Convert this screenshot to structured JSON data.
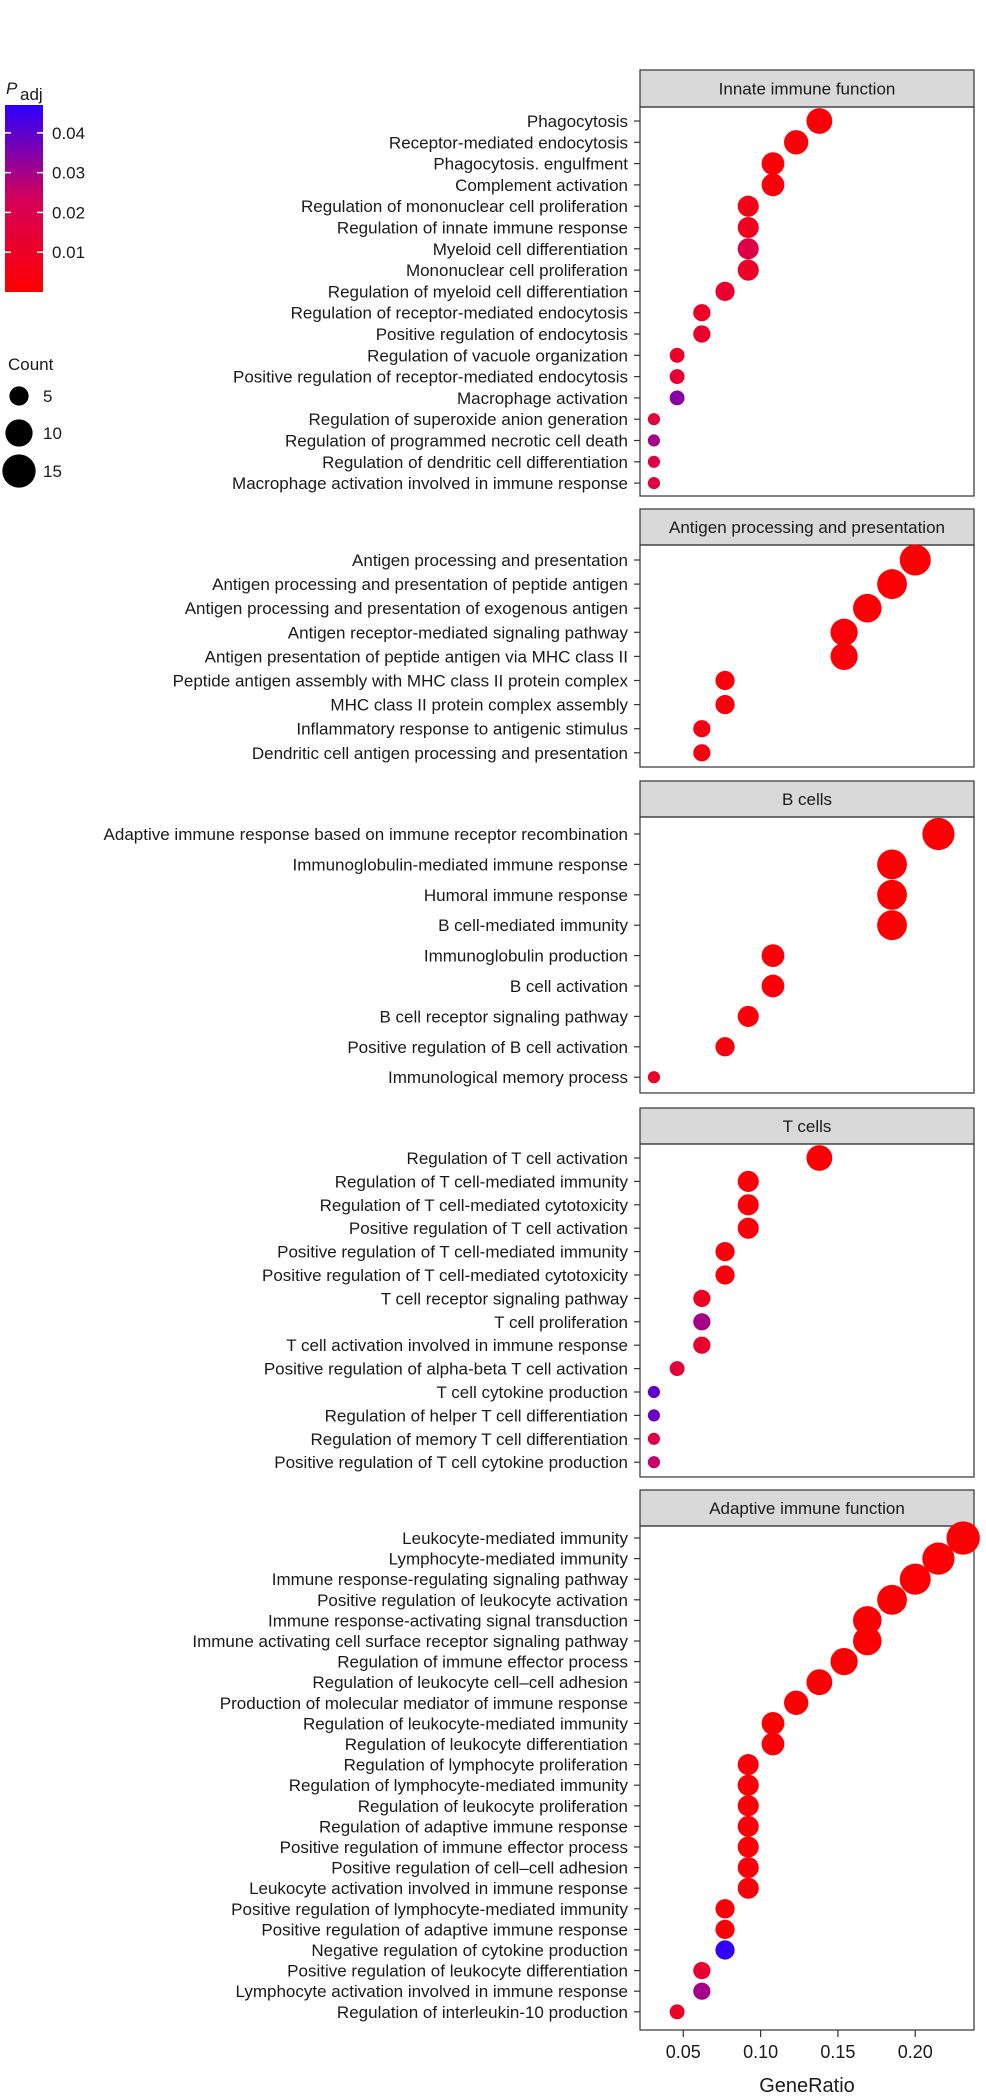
{
  "chart_data": {
    "type": "scatter",
    "xlabel": "GeneRatio",
    "xlim": [
      0.022,
      0.238
    ],
    "x_ticks": [
      "0.05",
      "0.10",
      "0.15",
      "0.20"
    ],
    "x_tick_values": [
      0.05,
      0.1,
      0.15,
      0.2
    ],
    "colors": {
      "low_p": "#ff0000",
      "high_p": "#2a00ff",
      "strip_fill": "#d9d9d9"
    },
    "legend": {
      "color_title_main": "P",
      "color_title_sub": "adj",
      "color_ticks": [
        "0.04",
        "0.03",
        "0.02",
        "0.01"
      ],
      "color_tick_values": [
        0.04,
        0.03,
        0.02,
        0.01
      ],
      "color_range": [
        0.0,
        0.047
      ],
      "size_title": "Count",
      "size_ticks": [
        "5",
        "10",
        "15"
      ],
      "size_tick_values": [
        5,
        10,
        15
      ]
    },
    "panels": [
      {
        "title": "Innate immune function",
        "points": [
          {
            "term": "Phagocytosis",
            "x": 0.138,
            "count": 9,
            "padj": 0.002
          },
          {
            "term": "Receptor-mediated endocytosis",
            "x": 0.123,
            "count": 8,
            "padj": 0.003
          },
          {
            "term": "Phagocytosis. engulfment",
            "x": 0.108,
            "count": 7,
            "padj": 0.002
          },
          {
            "term": "Complement activation",
            "x": 0.108,
            "count": 7,
            "padj": 0.003
          },
          {
            "term": "Regulation of mononuclear cell proliferation",
            "x": 0.092,
            "count": 6,
            "padj": 0.006
          },
          {
            "term": "Regulation of innate immune response",
            "x": 0.092,
            "count": 6,
            "padj": 0.008
          },
          {
            "term": "Myeloid cell differentiation",
            "x": 0.092,
            "count": 6,
            "padj": 0.018
          },
          {
            "term": "Mononuclear cell proliferation",
            "x": 0.092,
            "count": 6,
            "padj": 0.01
          },
          {
            "term": "Regulation of myeloid cell differentiation",
            "x": 0.077,
            "count": 5,
            "padj": 0.012
          },
          {
            "term": "Regulation of receptor-mediated endocytosis",
            "x": 0.062,
            "count": 4,
            "padj": 0.01
          },
          {
            "term": "Positive regulation of endocytosis",
            "x": 0.062,
            "count": 4,
            "padj": 0.012
          },
          {
            "term": "Regulation of vacuole organization",
            "x": 0.046,
            "count": 3,
            "padj": 0.011
          },
          {
            "term": "Positive regulation of receptor-mediated endocytosis",
            "x": 0.046,
            "count": 3,
            "padj": 0.013
          },
          {
            "term": "Macrophage activation",
            "x": 0.046,
            "count": 3,
            "padj": 0.034
          },
          {
            "term": "Regulation of superoxide anion generation",
            "x": 0.031,
            "count": 2,
            "padj": 0.016
          },
          {
            "term": "Regulation of programmed necrotic cell death",
            "x": 0.031,
            "count": 2,
            "padj": 0.03
          },
          {
            "term": "Regulation of dendritic cell differentiation",
            "x": 0.031,
            "count": 2,
            "padj": 0.018
          },
          {
            "term": "Macrophage activation involved in immune response",
            "x": 0.031,
            "count": 2,
            "padj": 0.017
          }
        ]
      },
      {
        "title": "Antigen processing and presentation",
        "points": [
          {
            "term": "Antigen processing and presentation",
            "x": 0.2,
            "count": 13,
            "padj": 0.001
          },
          {
            "term": "Antigen processing and presentation of peptide antigen",
            "x": 0.185,
            "count": 12,
            "padj": 0.001
          },
          {
            "term": "Antigen processing and presentation of exogenous antigen",
            "x": 0.169,
            "count": 11,
            "padj": 0.001
          },
          {
            "term": "Antigen receptor-mediated signaling pathway",
            "x": 0.154,
            "count": 10,
            "padj": 0.002
          },
          {
            "term": "Antigen presentation of peptide antigen via MHC class II",
            "x": 0.154,
            "count": 10,
            "padj": 0.002
          },
          {
            "term": "Peptide antigen assembly with MHC class II protein complex",
            "x": 0.077,
            "count": 5,
            "padj": 0.003
          },
          {
            "term": "MHC class II protein complex assembly",
            "x": 0.077,
            "count": 5,
            "padj": 0.003
          },
          {
            "term": "Inflammatory response to antigenic stimulus",
            "x": 0.062,
            "count": 4,
            "padj": 0.005
          },
          {
            "term": "Dendritic cell antigen processing and presentation",
            "x": 0.062,
            "count": 4,
            "padj": 0.004
          }
        ]
      },
      {
        "title": "B cells",
        "points": [
          {
            "term": "Adaptive immune response based on immune receptor recombination",
            "x": 0.215,
            "count": 14,
            "padj": 0.001
          },
          {
            "term": "Immunoglobulin-mediated immune response",
            "x": 0.185,
            "count": 12,
            "padj": 0.001
          },
          {
            "term": "Humoral immune response",
            "x": 0.185,
            "count": 12,
            "padj": 0.001
          },
          {
            "term": "B cell-mediated immunity",
            "x": 0.185,
            "count": 12,
            "padj": 0.001
          },
          {
            "term": "Immunoglobulin production",
            "x": 0.108,
            "count": 7,
            "padj": 0.002
          },
          {
            "term": "B cell activation",
            "x": 0.108,
            "count": 7,
            "padj": 0.002
          },
          {
            "term": "B cell receptor signaling pathway",
            "x": 0.092,
            "count": 6,
            "padj": 0.003
          },
          {
            "term": "Positive regulation of B cell activation",
            "x": 0.077,
            "count": 5,
            "padj": 0.004
          },
          {
            "term": "Immunological memory process",
            "x": 0.031,
            "count": 2,
            "padj": 0.01
          }
        ]
      },
      {
        "title": "T cells",
        "points": [
          {
            "term": "Regulation of T cell activation",
            "x": 0.138,
            "count": 9,
            "padj": 0.001
          },
          {
            "term": "Regulation of T cell-mediated immunity",
            "x": 0.092,
            "count": 6,
            "padj": 0.002
          },
          {
            "term": "Regulation of T cell-mediated cytotoxicity",
            "x": 0.092,
            "count": 6,
            "padj": 0.002
          },
          {
            "term": "Positive regulation of T cell activation",
            "x": 0.092,
            "count": 6,
            "padj": 0.002
          },
          {
            "term": "Positive regulation of T cell-mediated immunity",
            "x": 0.077,
            "count": 5,
            "padj": 0.003
          },
          {
            "term": "Positive regulation of T cell-mediated cytotoxicity",
            "x": 0.077,
            "count": 5,
            "padj": 0.003
          },
          {
            "term": "T cell receptor signaling pathway",
            "x": 0.062,
            "count": 4,
            "padj": 0.009
          },
          {
            "term": "T cell proliferation",
            "x": 0.062,
            "count": 4,
            "padj": 0.03
          },
          {
            "term": "T cell activation involved in immune response",
            "x": 0.062,
            "count": 4,
            "padj": 0.012
          },
          {
            "term": "Positive regulation of alpha-beta T cell activation",
            "x": 0.046,
            "count": 3,
            "padj": 0.015
          },
          {
            "term": "T cell cytokine production",
            "x": 0.031,
            "count": 2,
            "padj": 0.04
          },
          {
            "term": "Regulation of helper T cell differentiation",
            "x": 0.031,
            "count": 2,
            "padj": 0.038
          },
          {
            "term": "Regulation of memory T cell differentiation",
            "x": 0.031,
            "count": 2,
            "padj": 0.018
          },
          {
            "term": "Positive regulation of T cell cytokine production",
            "x": 0.031,
            "count": 2,
            "padj": 0.026
          }
        ]
      },
      {
        "title": "Adaptive immune function",
        "points": [
          {
            "term": "Leukocyte-mediated immunity",
            "x": 0.231,
            "count": 15,
            "padj": 0.001
          },
          {
            "term": "Lymphocyte-mediated immunity",
            "x": 0.215,
            "count": 14,
            "padj": 0.001
          },
          {
            "term": "Immune response-regulating signaling pathway",
            "x": 0.2,
            "count": 13,
            "padj": 0.001
          },
          {
            "term": "Positive regulation of leukocyte activation",
            "x": 0.185,
            "count": 12,
            "padj": 0.001
          },
          {
            "term": "Immune response-activating signal transduction",
            "x": 0.169,
            "count": 11,
            "padj": 0.001
          },
          {
            "term": "Immune activating cell surface receptor signaling pathway",
            "x": 0.169,
            "count": 11,
            "padj": 0.001
          },
          {
            "term": "Regulation of immune effector process",
            "x": 0.154,
            "count": 10,
            "padj": 0.001
          },
          {
            "term": "Regulation of leukocyte cell–cell adhesion",
            "x": 0.138,
            "count": 9,
            "padj": 0.001
          },
          {
            "term": "Production of molecular mediator of immune response",
            "x": 0.123,
            "count": 8,
            "padj": 0.001
          },
          {
            "term": "Regulation of leukocyte-mediated immunity",
            "x": 0.108,
            "count": 7,
            "padj": 0.001
          },
          {
            "term": "Regulation of leukocyte differentiation",
            "x": 0.108,
            "count": 7,
            "padj": 0.002
          },
          {
            "term": "Regulation of lymphocyte proliferation",
            "x": 0.092,
            "count": 6,
            "padj": 0.002
          },
          {
            "term": "Regulation of lymphocyte-mediated immunity",
            "x": 0.092,
            "count": 6,
            "padj": 0.002
          },
          {
            "term": "Regulation of leukocyte proliferation",
            "x": 0.092,
            "count": 6,
            "padj": 0.002
          },
          {
            "term": "Regulation of adaptive immune response",
            "x": 0.092,
            "count": 6,
            "padj": 0.002
          },
          {
            "term": "Positive regulation of immune effector process",
            "x": 0.092,
            "count": 6,
            "padj": 0.002
          },
          {
            "term": "Positive regulation of cell–cell adhesion",
            "x": 0.092,
            "count": 6,
            "padj": 0.003
          },
          {
            "term": "Leukocyte activation involved in immune response",
            "x": 0.092,
            "count": 6,
            "padj": 0.003
          },
          {
            "term": "Positive regulation of lymphocyte-mediated immunity",
            "x": 0.077,
            "count": 5,
            "padj": 0.002
          },
          {
            "term": "Positive regulation of adaptive immune response",
            "x": 0.077,
            "count": 5,
            "padj": 0.002
          },
          {
            "term": "Negative regulation of cytokine production",
            "x": 0.077,
            "count": 5,
            "padj": 0.046
          },
          {
            "term": "Positive regulation of leukocyte differentiation",
            "x": 0.062,
            "count": 4,
            "padj": 0.012
          },
          {
            "term": "Lymphocyte activation involved in immune response",
            "x": 0.062,
            "count": 4,
            "padj": 0.03
          },
          {
            "term": "Regulation of interleukin-10 production",
            "x": 0.046,
            "count": 3,
            "padj": 0.01
          }
        ]
      }
    ]
  }
}
